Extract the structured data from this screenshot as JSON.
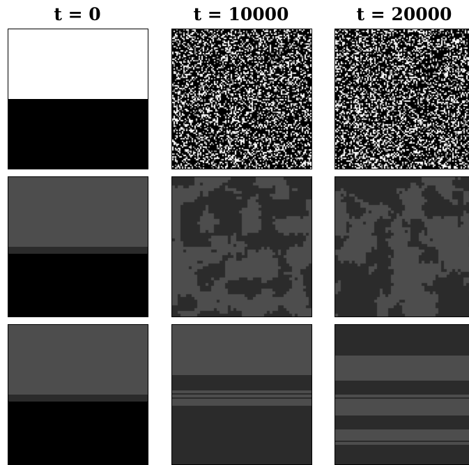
{
  "column_titles": [
    "t = 0",
    "t = 10000",
    "t = 20000"
  ],
  "colors": {
    "white": "#ffffff",
    "black": "#000000",
    "gray_light": "#4d4d4d",
    "gray_dark": "#2b2b2b"
  },
  "rows": [
    {
      "name": "binary-row",
      "panels": [
        {
          "kind": "bands",
          "bands": [
            {
              "to": 0.5,
              "color": "#ffffff"
            },
            {
              "to": 1.0,
              "color": "#000000"
            }
          ]
        },
        {
          "kind": "noise",
          "seed": 11,
          "palette": [
            "#000000",
            "#ffffff",
            "#9a9a9a"
          ],
          "weights": [
            0.66,
            0.22,
            0.12
          ]
        },
        {
          "kind": "noise",
          "seed": 23,
          "palette": [
            "#000000",
            "#ffffff",
            "#9a9a9a"
          ],
          "weights": [
            0.64,
            0.24,
            0.12
          ]
        }
      ]
    },
    {
      "name": "cluster-row",
      "panels": [
        {
          "kind": "bands",
          "bands": [
            {
              "to": 0.5,
              "color": "#4d4d4d"
            },
            {
              "to": 0.55,
              "color": "#2b2b2b"
            },
            {
              "to": 1.0,
              "color": "#000000"
            }
          ]
        },
        {
          "kind": "blobs",
          "seed": 5,
          "colors": [
            "#4d4d4d",
            "#2b2b2b"
          ],
          "threshold": 0.48
        },
        {
          "kind": "blobs",
          "seed": 17,
          "colors": [
            "#4d4d4d",
            "#2b2b2b"
          ],
          "threshold": 0.5
        }
      ]
    },
    {
      "name": "stripe-row",
      "panels": [
        {
          "kind": "bands",
          "bands": [
            {
              "to": 0.5,
              "color": "#4d4d4d"
            },
            {
              "to": 0.55,
              "color": "#2b2b2b"
            },
            {
              "to": 1.0,
              "color": "#000000"
            }
          ]
        },
        {
          "kind": "bands",
          "bands": [
            {
              "to": 0.36,
              "color": "#4d4d4d"
            },
            {
              "to": 0.47,
              "color": "#2b2b2b"
            },
            {
              "to": 0.49,
              "color": "#4d4d4d"
            },
            {
              "to": 0.5,
              "color": "#2b2b2b"
            },
            {
              "to": 0.52,
              "color": "#4d4d4d"
            },
            {
              "to": 0.53,
              "color": "#2b2b2b"
            },
            {
              "to": 0.58,
              "color": "#4d4d4d"
            },
            {
              "to": 1.0,
              "color": "#2b2b2b"
            }
          ]
        },
        {
          "kind": "bands",
          "bands": [
            {
              "to": 0.22,
              "color": "#2b2b2b"
            },
            {
              "to": 0.4,
              "color": "#4d4d4d"
            },
            {
              "to": 0.5,
              "color": "#2b2b2b"
            },
            {
              "to": 0.52,
              "color": "#4d4d4d"
            },
            {
              "to": 0.53,
              "color": "#2b2b2b"
            },
            {
              "to": 0.65,
              "color": "#4d4d4d"
            },
            {
              "to": 0.75,
              "color": "#2b2b2b"
            },
            {
              "to": 0.83,
              "color": "#4d4d4d"
            },
            {
              "to": 0.84,
              "color": "#2b2b2b"
            },
            {
              "to": 0.86,
              "color": "#4d4d4d"
            },
            {
              "to": 1.0,
              "color": "#2b2b2b"
            }
          ]
        }
      ]
    }
  ]
}
